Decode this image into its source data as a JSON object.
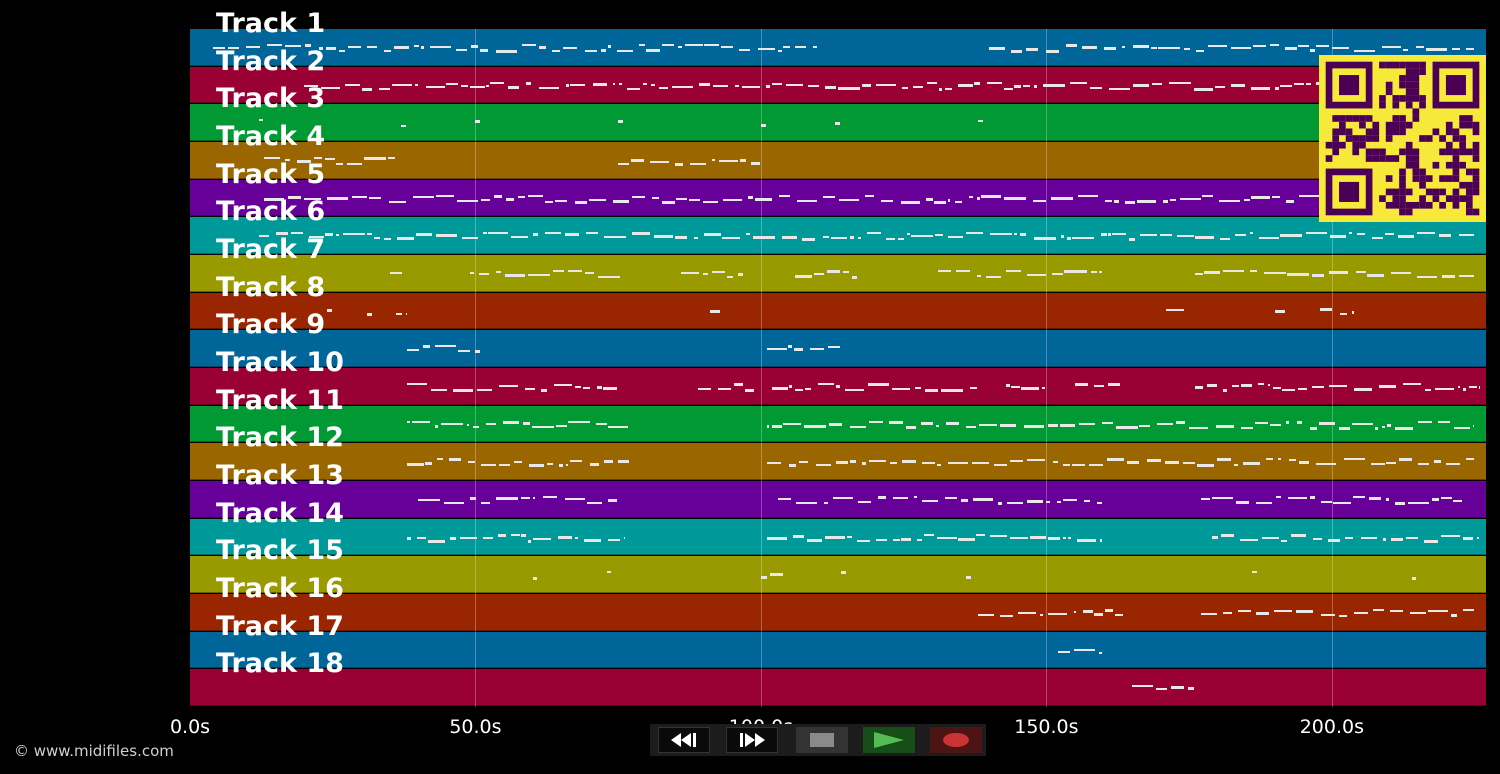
{
  "tracks": [
    {
      "label": "Track 1",
      "color": "#006699"
    },
    {
      "label": "Track 2",
      "color": "#990033"
    },
    {
      "label": "Track 3",
      "color": "#009933"
    },
    {
      "label": "Track 4",
      "color": "#996600"
    },
    {
      "label": "Track 5",
      "color": "#660099"
    },
    {
      "label": "Track 6",
      "color": "#009999"
    },
    {
      "label": "Track 7",
      "color": "#999900"
    },
    {
      "label": "Track 8",
      "color": "#992600"
    },
    {
      "label": "Track 9",
      "color": "#006699"
    },
    {
      "label": "Track 10",
      "color": "#990033"
    },
    {
      "label": "Track 11",
      "color": "#009933"
    },
    {
      "label": "Track 12",
      "color": "#996600"
    },
    {
      "label": "Track 13",
      "color": "#660099"
    },
    {
      "label": "Track 14",
      "color": "#009999"
    },
    {
      "label": "Track 15",
      "color": "#999900"
    },
    {
      "label": "Track 16",
      "color": "#992600"
    },
    {
      "label": "Track 17",
      "color": "#006699"
    },
    {
      "label": "Track 18",
      "color": "#990033"
    }
  ],
  "time_axis": {
    "ticks": [
      "0.0s",
      "50.0s",
      "100.0s",
      "150.0s",
      "200.0s"
    ],
    "tick_seconds": [
      0,
      50,
      100,
      150,
      200
    ],
    "max_seconds": 227
  },
  "note_segments": [
    {
      "track": 0,
      "spans": [
        [
          4,
          110
        ],
        [
          140,
          225
        ]
      ]
    },
    {
      "track": 1,
      "spans": [
        [
          20,
          225
        ]
      ]
    },
    {
      "track": 2,
      "spans": [
        [
          12,
          13
        ],
        [
          37,
          38
        ],
        [
          50,
          51
        ],
        [
          75,
          76
        ],
        [
          100,
          101
        ],
        [
          113,
          114
        ],
        [
          138,
          139
        ]
      ]
    },
    {
      "track": 3,
      "spans": [
        [
          13,
          36
        ],
        [
          75,
          100
        ]
      ]
    },
    {
      "track": 4,
      "spans": [
        [
          13,
          225
        ]
      ]
    },
    {
      "track": 5,
      "spans": [
        [
          12,
          225
        ]
      ]
    },
    {
      "track": 6,
      "spans": [
        [
          35,
          38
        ],
        [
          49,
          76
        ],
        [
          86,
          97
        ],
        [
          106,
          118
        ],
        [
          131,
          160
        ],
        [
          176,
          225
        ]
      ]
    },
    {
      "track": 7,
      "spans": [
        [
          24,
          25
        ],
        [
          31,
          32
        ],
        [
          36,
          38
        ],
        [
          91,
          93
        ],
        [
          171,
          175
        ],
        [
          190,
          192
        ],
        [
          198,
          204
        ]
      ]
    },
    {
      "track": 8,
      "spans": [
        [
          38,
          51
        ],
        [
          101,
          114
        ]
      ]
    },
    {
      "track": 9,
      "spans": [
        [
          38,
          75
        ],
        [
          89,
          99
        ],
        [
          102,
          138
        ],
        [
          143,
          150
        ],
        [
          155,
          163
        ],
        [
          176,
          226
        ]
      ]
    },
    {
      "track": 10,
      "spans": [
        [
          38,
          77
        ],
        [
          101,
          225
        ]
      ]
    },
    {
      "track": 11,
      "spans": [
        [
          38,
          77
        ],
        [
          101,
          225
        ]
      ]
    },
    {
      "track": 12,
      "spans": [
        [
          40,
          75
        ],
        [
          103,
          160
        ],
        [
          177,
          223
        ]
      ]
    },
    {
      "track": 13,
      "spans": [
        [
          38,
          76
        ],
        [
          101,
          160
        ],
        [
          179,
          226
        ]
      ]
    },
    {
      "track": 14,
      "spans": [
        [
          60,
          61
        ],
        [
          73,
          74
        ],
        [
          100,
          104
        ],
        [
          114,
          115
        ],
        [
          136,
          137
        ],
        [
          186,
          187
        ],
        [
          214,
          215
        ]
      ]
    },
    {
      "track": 15,
      "spans": [
        [
          138,
          164
        ],
        [
          177,
          225
        ]
      ]
    },
    {
      "track": 16,
      "spans": [
        [
          152,
          160
        ]
      ]
    },
    {
      "track": 17,
      "spans": [
        [
          165,
          176
        ]
      ]
    }
  ],
  "transport": {
    "rewind_icon": "rewind-icon",
    "fast_forward_icon": "fast-forward-icon",
    "stop_icon": "stop-icon",
    "play_icon": "play-icon",
    "record_icon": "record-icon"
  },
  "copyright": "© www.midifiles.com",
  "qr_code": {
    "fg": "#4b0055",
    "bg": "#f7e93a"
  }
}
